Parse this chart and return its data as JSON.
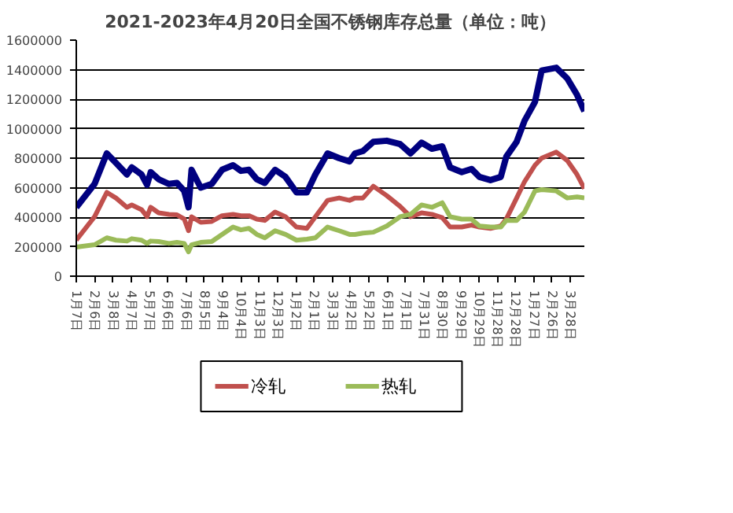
{
  "chart_data": {
    "type": "line",
    "title": "2021-2023年4月20日全国不锈钢库存总量（单位：吨）",
    "x": [
      "2021-01-07",
      "2021-02-06",
      "2021-02-26",
      "2021-03-13",
      "2021-03-31",
      "2021-04-08",
      "2021-04-24",
      "2021-05-03",
      "2021-05-09",
      "2021-05-22",
      "2021-06-08",
      "2021-06-21",
      "2021-07-03",
      "2021-07-10",
      "2021-07-15",
      "2021-07-30",
      "2021-08-17",
      "2021-09-03",
      "2021-09-21",
      "2021-10-04",
      "2021-10-17",
      "2021-10-30",
      "2021-11-12",
      "2021-11-29",
      "2021-12-16",
      "2022-01-03",
      "2022-01-20",
      "2022-02-03",
      "2022-02-23",
      "2022-03-14",
      "2022-03-31",
      "2022-04-09",
      "2022-04-22",
      "2022-05-09",
      "2022-05-31",
      "2022-06-22",
      "2022-07-09",
      "2022-07-27",
      "2022-08-13",
      "2022-08-30",
      "2022-09-12",
      "2022-10-01",
      "2022-10-17",
      "2022-10-30",
      "2022-11-17",
      "2022-12-04",
      "2022-12-13",
      "2022-12-30",
      "2023-01-12",
      "2023-01-29",
      "2023-02-09",
      "2023-03-05",
      "2023-03-23",
      "2023-04-08",
      "2023-04-20"
    ],
    "series": [
      {
        "color": "#000080",
        "values": [
          467000,
          625000,
          832000,
          768000,
          689000,
          737000,
          689000,
          619000,
          705000,
          657000,
          625000,
          632000,
          578000,
          467000,
          721000,
          600000,
          625000,
          721000,
          752000,
          714000,
          721000,
          657000,
          632000,
          721000,
          673000,
          568000,
          568000,
          689000,
          832000,
          800000,
          778000,
          832000,
          848000,
          911000,
          918000,
          895000,
          832000,
          905000,
          864000,
          880000,
          737000,
          705000,
          727000,
          673000,
          651000,
          673000,
          810000,
          911000,
          1054000,
          1181000,
          1394000,
          1413000,
          1340000,
          1229000,
          1118000
        ]
      },
      {
        "name": "冷轧",
        "color": "#c0504d",
        "values": [
          245000,
          403000,
          568000,
          530000,
          467000,
          483000,
          451000,
          403000,
          467000,
          429000,
          419000,
          416000,
          387000,
          308000,
          403000,
          365000,
          371000,
          410000,
          419000,
          410000,
          410000,
          387000,
          378000,
          435000,
          403000,
          333000,
          324000,
          403000,
          514000,
          530000,
          514000,
          530000,
          530000,
          610000,
          546000,
          473000,
          403000,
          429000,
          419000,
          397000,
          333000,
          333000,
          346000,
          333000,
          324000,
          340000,
          387000,
          530000,
          641000,
          752000,
          800000,
          841000,
          784000,
          689000,
          594000
        ]
      },
      {
        "name": "热轧",
        "color": "#9bbb59",
        "values": [
          197000,
          213000,
          260000,
          244000,
          238000,
          254000,
          244000,
          222000,
          238000,
          235000,
          222000,
          229000,
          222000,
          165000,
          213000,
          229000,
          235000,
          283000,
          333000,
          314000,
          324000,
          283000,
          260000,
          308000,
          283000,
          244000,
          251000,
          260000,
          333000,
          308000,
          283000,
          283000,
          292000,
          298000,
          340000,
          403000,
          419000,
          483000,
          467000,
          498000,
          403000,
          387000,
          387000,
          340000,
          333000,
          333000,
          378000,
          378000,
          435000,
          578000,
          587000,
          578000,
          530000,
          537000,
          530000
        ]
      }
    ],
    "xlim": [
      "2021-01-07",
      "2023-04-20"
    ],
    "xticks": [
      {
        "value": "2021-01-07",
        "label": "1月7日"
      },
      {
        "value": "2021-02-06",
        "label": "2月6日"
      },
      {
        "value": "2021-03-08",
        "label": "3月8日"
      },
      {
        "value": "2021-04-07",
        "label": "4月7日"
      },
      {
        "value": "2021-05-07",
        "label": "5月7日"
      },
      {
        "value": "2021-06-06",
        "label": "6月6日"
      },
      {
        "value": "2021-07-06",
        "label": "7月6日"
      },
      {
        "value": "2021-08-05",
        "label": "8月5日"
      },
      {
        "value": "2021-09-04",
        "label": "9月4日"
      },
      {
        "value": "2021-10-04",
        "label": "10月4日"
      },
      {
        "value": "2021-11-03",
        "label": "11月3日"
      },
      {
        "value": "2021-12-03",
        "label": "12月3日"
      },
      {
        "value": "2022-01-02",
        "label": "1月2日"
      },
      {
        "value": "2022-02-01",
        "label": "2月1日"
      },
      {
        "value": "2022-03-03",
        "label": "3月3日"
      },
      {
        "value": "2022-04-02",
        "label": "4月2日"
      },
      {
        "value": "2022-05-02",
        "label": "5月2日"
      },
      {
        "value": "2022-06-01",
        "label": "6月1日"
      },
      {
        "value": "2022-07-01",
        "label": "7月1日"
      },
      {
        "value": "2022-07-31",
        "label": "7月31日"
      },
      {
        "value": "2022-08-30",
        "label": "8月30日"
      },
      {
        "value": "2022-09-29",
        "label": "9月29日"
      },
      {
        "value": "2022-10-29",
        "label": "10月29日"
      },
      {
        "value": "2022-11-28",
        "label": "11月28日"
      },
      {
        "value": "2022-12-28",
        "label": "12月28日"
      },
      {
        "value": "2023-01-27",
        "label": "1月27日"
      },
      {
        "value": "2023-02-26",
        "label": "2月26日"
      },
      {
        "value": "2023-03-28",
        "label": "3月28日"
      }
    ],
    "ylim": [
      0,
      1600000
    ],
    "yticks": [
      0,
      200000,
      400000,
      600000,
      800000,
      1000000,
      1200000,
      1400000,
      1600000
    ],
    "grid": "y",
    "legend": "bottom",
    "marker": "none",
    "line_style": "solid"
  }
}
